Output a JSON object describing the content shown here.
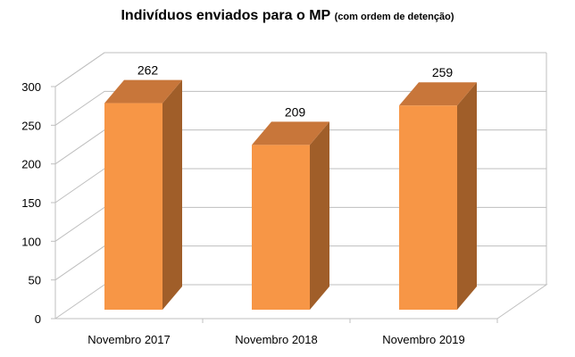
{
  "chart_data": {
    "type": "bar",
    "title": "Indivíduos enviados para o MP",
    "subtitle": "(com ordem de detenção)",
    "categories": [
      "Novembro 2017",
      "Novembro 2018",
      "Novembro 2019"
    ],
    "values": [
      262,
      209,
      259
    ],
    "data_labels": [
      "262",
      "209",
      "259"
    ],
    "ylim": [
      0,
      300
    ],
    "yticks": [
      "0",
      "50",
      "100",
      "150",
      "200",
      "250",
      "300"
    ],
    "grid": true,
    "legend": "none",
    "style": "3d-column",
    "colors": {
      "bar_front": "#F79646",
      "bar_top": "#C8763A",
      "bar_side": "#A05E29",
      "grid": "#BFBFBF"
    }
  }
}
